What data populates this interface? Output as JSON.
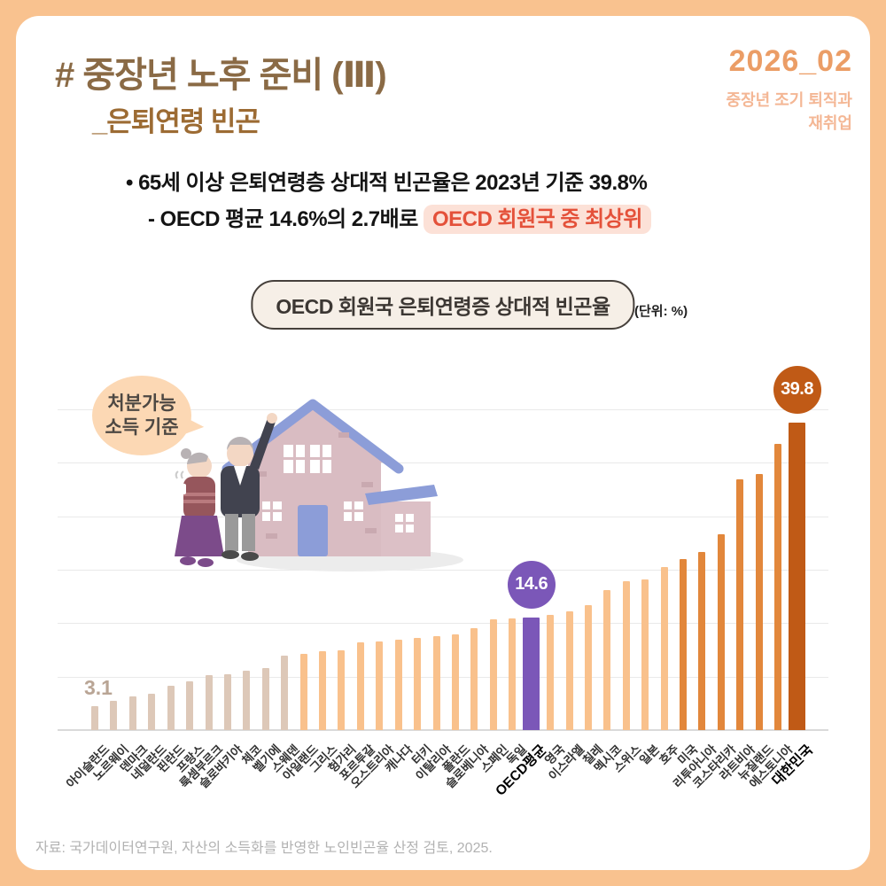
{
  "header": {
    "title": "# 중장년 노후 준비 (Ⅲ)",
    "subtitle": "_은퇴연령 빈곤",
    "issue_number": "2026_02",
    "issue_topic_line1": "중장년 조기 퇴직과",
    "issue_topic_line2": "재취업"
  },
  "bullets": {
    "dot": "•",
    "line1": "65세 이상 은퇴연령층 상대적 빈곤율은 2023년 기준 39.8%",
    "line2_prefix": "- OECD 평균 14.6%의 2.7배로 ",
    "line2_highlight": "OECD 회원국 중 최상위"
  },
  "chart_header": {
    "title": "OECD 회원국 은퇴연령증 상대적 빈곤율",
    "unit": "(단위: %)"
  },
  "note_bubble": {
    "line1": "처분가능",
    "line2": "소득 기준"
  },
  "chart_data": {
    "type": "bar",
    "title": "OECD 회원국 은퇴연령증 상대적 빈곤율",
    "unit": "(단위: %)",
    "grid": "horizontal",
    "ylim": [
      0,
      41.5
    ],
    "categories": [
      "아이슬란드",
      "노르웨이",
      "덴마크",
      "네덜란드",
      "핀란드",
      "프랑스",
      "룩셈부르크",
      "슬로바키아",
      "체코",
      "벨기에",
      "스웨덴",
      "아일랜드",
      "그리스",
      "헝가리",
      "포르투갈",
      "오스트리아",
      "캐나다",
      "터키",
      "이탈리아",
      "폴란드",
      "슬로베니아",
      "스페인",
      "독일",
      "OECD평균",
      "영국",
      "이스라엘",
      "칠레",
      "멕시코",
      "스위스",
      "일본",
      "호주",
      "미국",
      "리투아니아",
      "코스타리카",
      "라트비아",
      "뉴질랜드",
      "에스토니아",
      "대한민국"
    ],
    "values": [
      3.1,
      3.8,
      4.4,
      4.7,
      5.7,
      6.3,
      7.1,
      7.2,
      7.7,
      8.0,
      9.6,
      9.9,
      10.2,
      10.3,
      11.3,
      11.5,
      11.7,
      11.9,
      12.1,
      12.4,
      13.2,
      14.3,
      14.5,
      14.6,
      14.9,
      15.4,
      16.2,
      18.1,
      19.3,
      19.5,
      21.1,
      22.1,
      23.1,
      25.3,
      32.4,
      33.1,
      37.0,
      39.8
    ],
    "bar_colors": [
      "tan",
      "tan",
      "tan",
      "tan",
      "tan",
      "tan",
      "tan",
      "tan",
      "tan",
      "tan",
      "tan",
      "light",
      "light",
      "light",
      "light",
      "light",
      "light",
      "light",
      "light",
      "light",
      "light",
      "light",
      "light",
      "purple",
      "light",
      "light",
      "light",
      "light",
      "light",
      "light",
      "light",
      "dark",
      "dark",
      "dark",
      "dark",
      "dark",
      "dark",
      "korea"
    ],
    "bar_palette": {
      "tan": "#ddc8b8",
      "light": "#f9c18c",
      "dark": "#e2873b",
      "korea": "#c05a16",
      "purple": "#7b57b8"
    },
    "emphasis_indices": [
      23,
      37
    ],
    "wide_indices": [
      23,
      37
    ],
    "badges": [
      {
        "index": 23,
        "label": "14.6",
        "color": "purple"
      },
      {
        "index": 37,
        "label": "39.8",
        "color": "korea"
      }
    ],
    "min_value_label": {
      "index": 0,
      "label": "3.1"
    },
    "annotation_note": "처분가능 소득 기준"
  },
  "source": "자료: 국가데이터연구원, 자산의 소득화를 반영한 노인빈곤율 산정 검토, 2025."
}
